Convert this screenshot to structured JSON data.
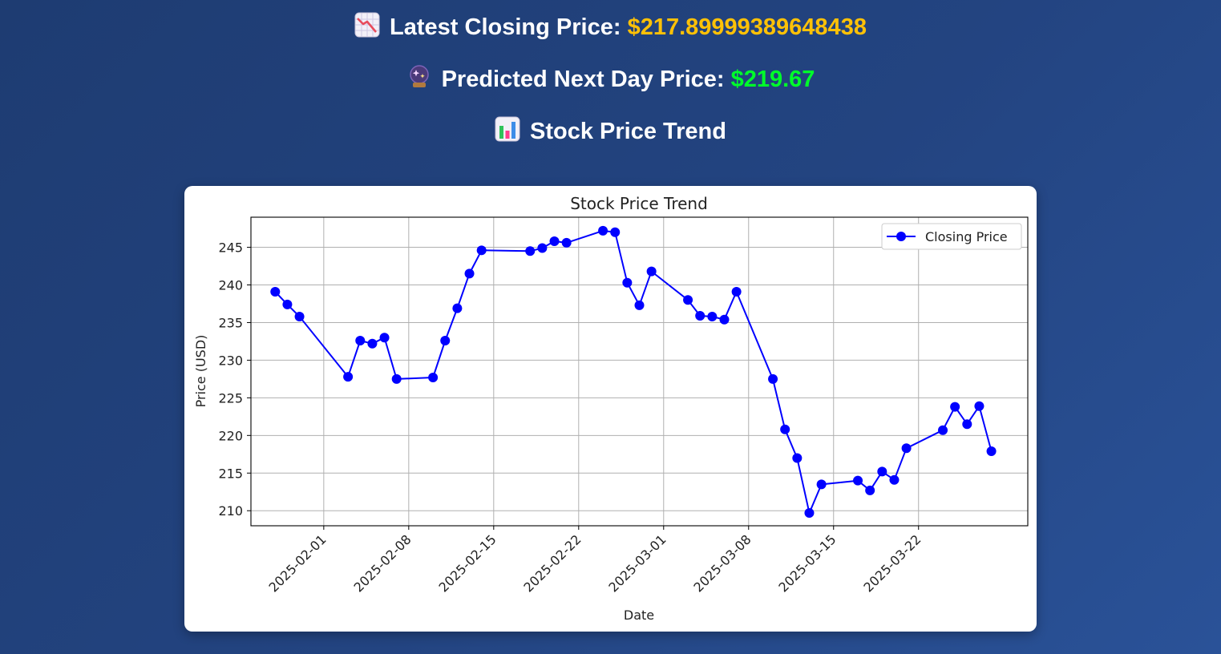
{
  "header": {
    "latest_label": "Latest Closing Price:",
    "latest_value": "$217.89999389648438",
    "latest_icon": "chart-decreasing-icon",
    "predicted_label": "Predicted Next Day Price:",
    "predicted_value": "$219.67",
    "predicted_icon": "crystal-ball-icon",
    "trend_label": "Stock Price Trend",
    "trend_icon": "bar-chart-icon"
  },
  "colors": {
    "background": "#1e3c72",
    "latest_value": "#ffc107",
    "predicted_value": "#00ff2a",
    "series": "#0000ff"
  },
  "chart_data": {
    "type": "line",
    "title": "Stock Price Trend",
    "xlabel": "Date",
    "ylabel": "Price (USD)",
    "x_ticks": [
      "2025-02-01",
      "2025-02-08",
      "2025-02-15",
      "2025-02-22",
      "2025-03-01",
      "2025-03-08",
      "2025-03-15",
      "2025-03-22"
    ],
    "y_ticks": [
      210,
      215,
      220,
      225,
      230,
      235,
      240,
      245
    ],
    "ylim": [
      208,
      249
    ],
    "xlim": [
      "2025-01-26",
      "2025-03-31"
    ],
    "grid": true,
    "legend_position": "top-right",
    "series": [
      {
        "name": "Closing Price",
        "marker": "circle",
        "x": [
          "2025-01-28",
          "2025-01-29",
          "2025-01-30",
          "2025-02-03",
          "2025-02-04",
          "2025-02-05",
          "2025-02-06",
          "2025-02-07",
          "2025-02-10",
          "2025-02-11",
          "2025-02-12",
          "2025-02-13",
          "2025-02-14",
          "2025-02-18",
          "2025-02-19",
          "2025-02-20",
          "2025-02-21",
          "2025-02-24",
          "2025-02-25",
          "2025-02-26",
          "2025-02-27",
          "2025-02-28",
          "2025-03-03",
          "2025-03-04",
          "2025-03-05",
          "2025-03-06",
          "2025-03-07",
          "2025-03-10",
          "2025-03-11",
          "2025-03-12",
          "2025-03-13",
          "2025-03-14",
          "2025-03-17",
          "2025-03-18",
          "2025-03-19",
          "2025-03-20",
          "2025-03-21",
          "2025-03-24",
          "2025-03-25",
          "2025-03-26",
          "2025-03-27",
          "2025-03-28"
        ],
        "values": [
          239.1,
          237.4,
          235.8,
          227.8,
          232.6,
          232.2,
          233.0,
          227.5,
          227.7,
          232.6,
          236.9,
          241.5,
          244.6,
          244.5,
          244.9,
          245.8,
          245.6,
          247.2,
          247.0,
          240.3,
          237.3,
          241.8,
          238.0,
          235.9,
          235.8,
          235.4,
          239.1,
          227.5,
          220.8,
          217.0,
          209.7,
          213.5,
          214.0,
          212.7,
          215.2,
          214.1,
          218.3,
          220.7,
          223.8,
          221.5,
          223.9,
          217.9
        ]
      }
    ]
  }
}
